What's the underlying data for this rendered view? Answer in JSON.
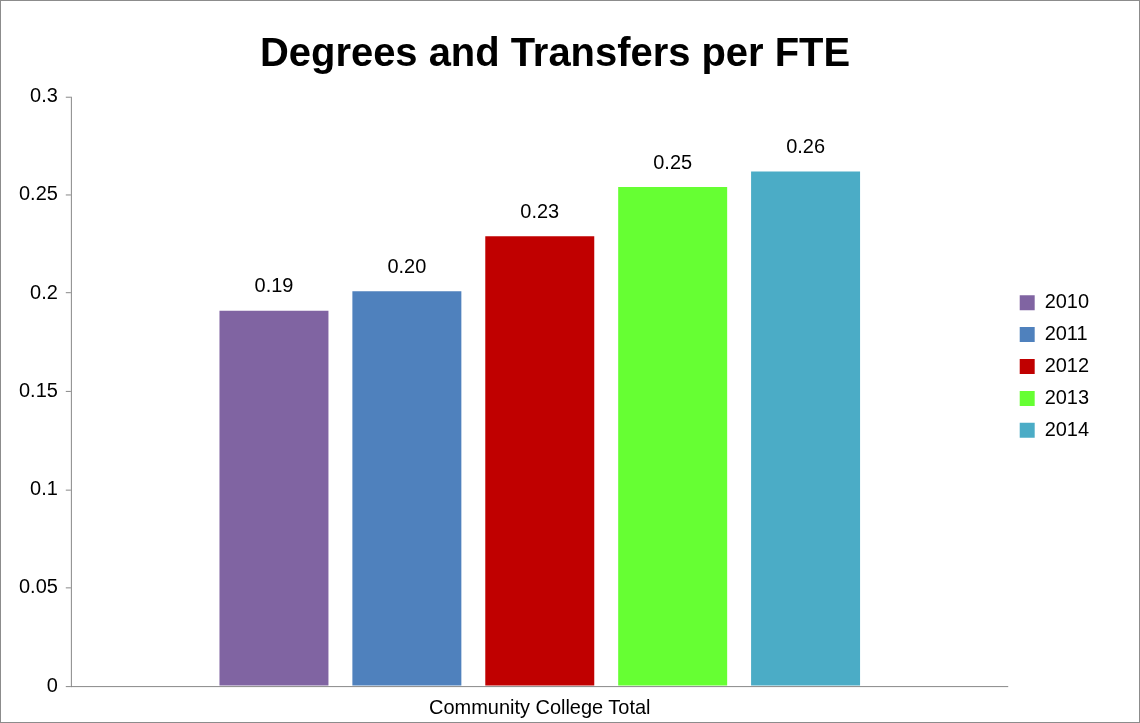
{
  "chart_data": {
    "type": "bar",
    "title": "Degrees and Transfers per FTE",
    "categories": [
      "Community College Total"
    ],
    "series": [
      {
        "name": "2010",
        "color": "#8064a2",
        "values": [
          0.191
        ],
        "value_labels": [
          "0.19"
        ]
      },
      {
        "name": "2011",
        "color": "#4f81bd",
        "values": [
          0.201
        ],
        "value_labels": [
          "0.20"
        ]
      },
      {
        "name": "2012",
        "color": "#c00000",
        "values": [
          0.229
        ],
        "value_labels": [
          "0.23"
        ]
      },
      {
        "name": "2013",
        "color": "#66ff33",
        "values": [
          0.254
        ],
        "value_labels": [
          "0.25"
        ]
      },
      {
        "name": "2014",
        "color": "#4bacc6",
        "values": [
          0.262
        ],
        "value_labels": [
          "0.26"
        ]
      }
    ],
    "ylim": [
      0,
      0.3
    ],
    "yticks": [
      0,
      0.05,
      0.1,
      0.15,
      0.2,
      0.25,
      0.3
    ],
    "grid": false,
    "legend": "right"
  }
}
